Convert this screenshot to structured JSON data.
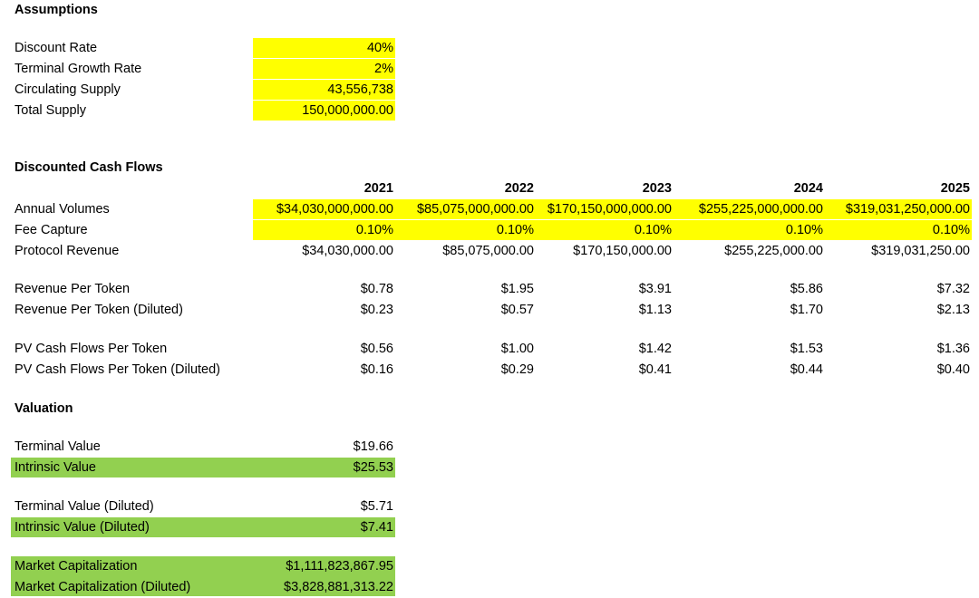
{
  "assumptions": {
    "title": "Assumptions",
    "rows": [
      {
        "label": "Discount Rate",
        "value": "40%"
      },
      {
        "label": "Terminal Growth Rate",
        "value": "2%"
      },
      {
        "label": "Circulating Supply",
        "value": "43,556,738"
      },
      {
        "label": "Total Supply",
        "value": "150,000,000.00"
      }
    ]
  },
  "dcf": {
    "title": "Discounted Cash Flows",
    "years": [
      "2021",
      "2022",
      "2023",
      "2024",
      "2025"
    ],
    "rows": [
      {
        "label": "Annual Volumes",
        "values": [
          "$34,030,000,000.00",
          "$85,075,000,000.00",
          "$170,150,000,000.00",
          "$255,225,000,000.00",
          "$319,031,250,000.00"
        ]
      },
      {
        "label": "Fee Capture",
        "values": [
          "0.10%",
          "0.10%",
          "0.10%",
          "0.10%",
          "0.10%"
        ]
      },
      {
        "label": "Protocol Revenue",
        "values": [
          "$34,030,000.00",
          "$85,075,000.00",
          "$170,150,000.00",
          "$255,225,000.00",
          "$319,031,250.00"
        ]
      },
      {
        "label": "Revenue Per Token",
        "values": [
          "$0.78",
          "$1.95",
          "$3.91",
          "$5.86",
          "$7.32"
        ]
      },
      {
        "label": "Revenue Per Token (Diluted)",
        "values": [
          "$0.23",
          "$0.57",
          "$1.13",
          "$1.70",
          "$2.13"
        ]
      },
      {
        "label": "PV Cash Flows Per Token",
        "values": [
          "$0.56",
          "$1.00",
          "$1.42",
          "$1.53",
          "$1.36"
        ]
      },
      {
        "label": "PV Cash Flows Per Token (Diluted)",
        "values": [
          "$0.16",
          "$0.29",
          "$0.41",
          "$0.44",
          "$0.40"
        ]
      }
    ]
  },
  "valuation": {
    "title": "Valuation",
    "rows": [
      {
        "label": "Terminal Value",
        "value": "$19.66"
      },
      {
        "label": "Intrinsic Value",
        "value": "$25.53"
      },
      {
        "label": "Terminal Value (Diluted)",
        "value": "$5.71"
      },
      {
        "label": "Intrinsic Value (Diluted)",
        "value": "$7.41"
      },
      {
        "label": "Market Capitalization",
        "value": "$1,111,823,867.95"
      },
      {
        "label": "Market Capitalization (Diluted)",
        "value": "$3,828,881,313.22"
      }
    ]
  },
  "colors": {
    "input_highlight": "#ffff00",
    "output_highlight": "#92d050"
  }
}
